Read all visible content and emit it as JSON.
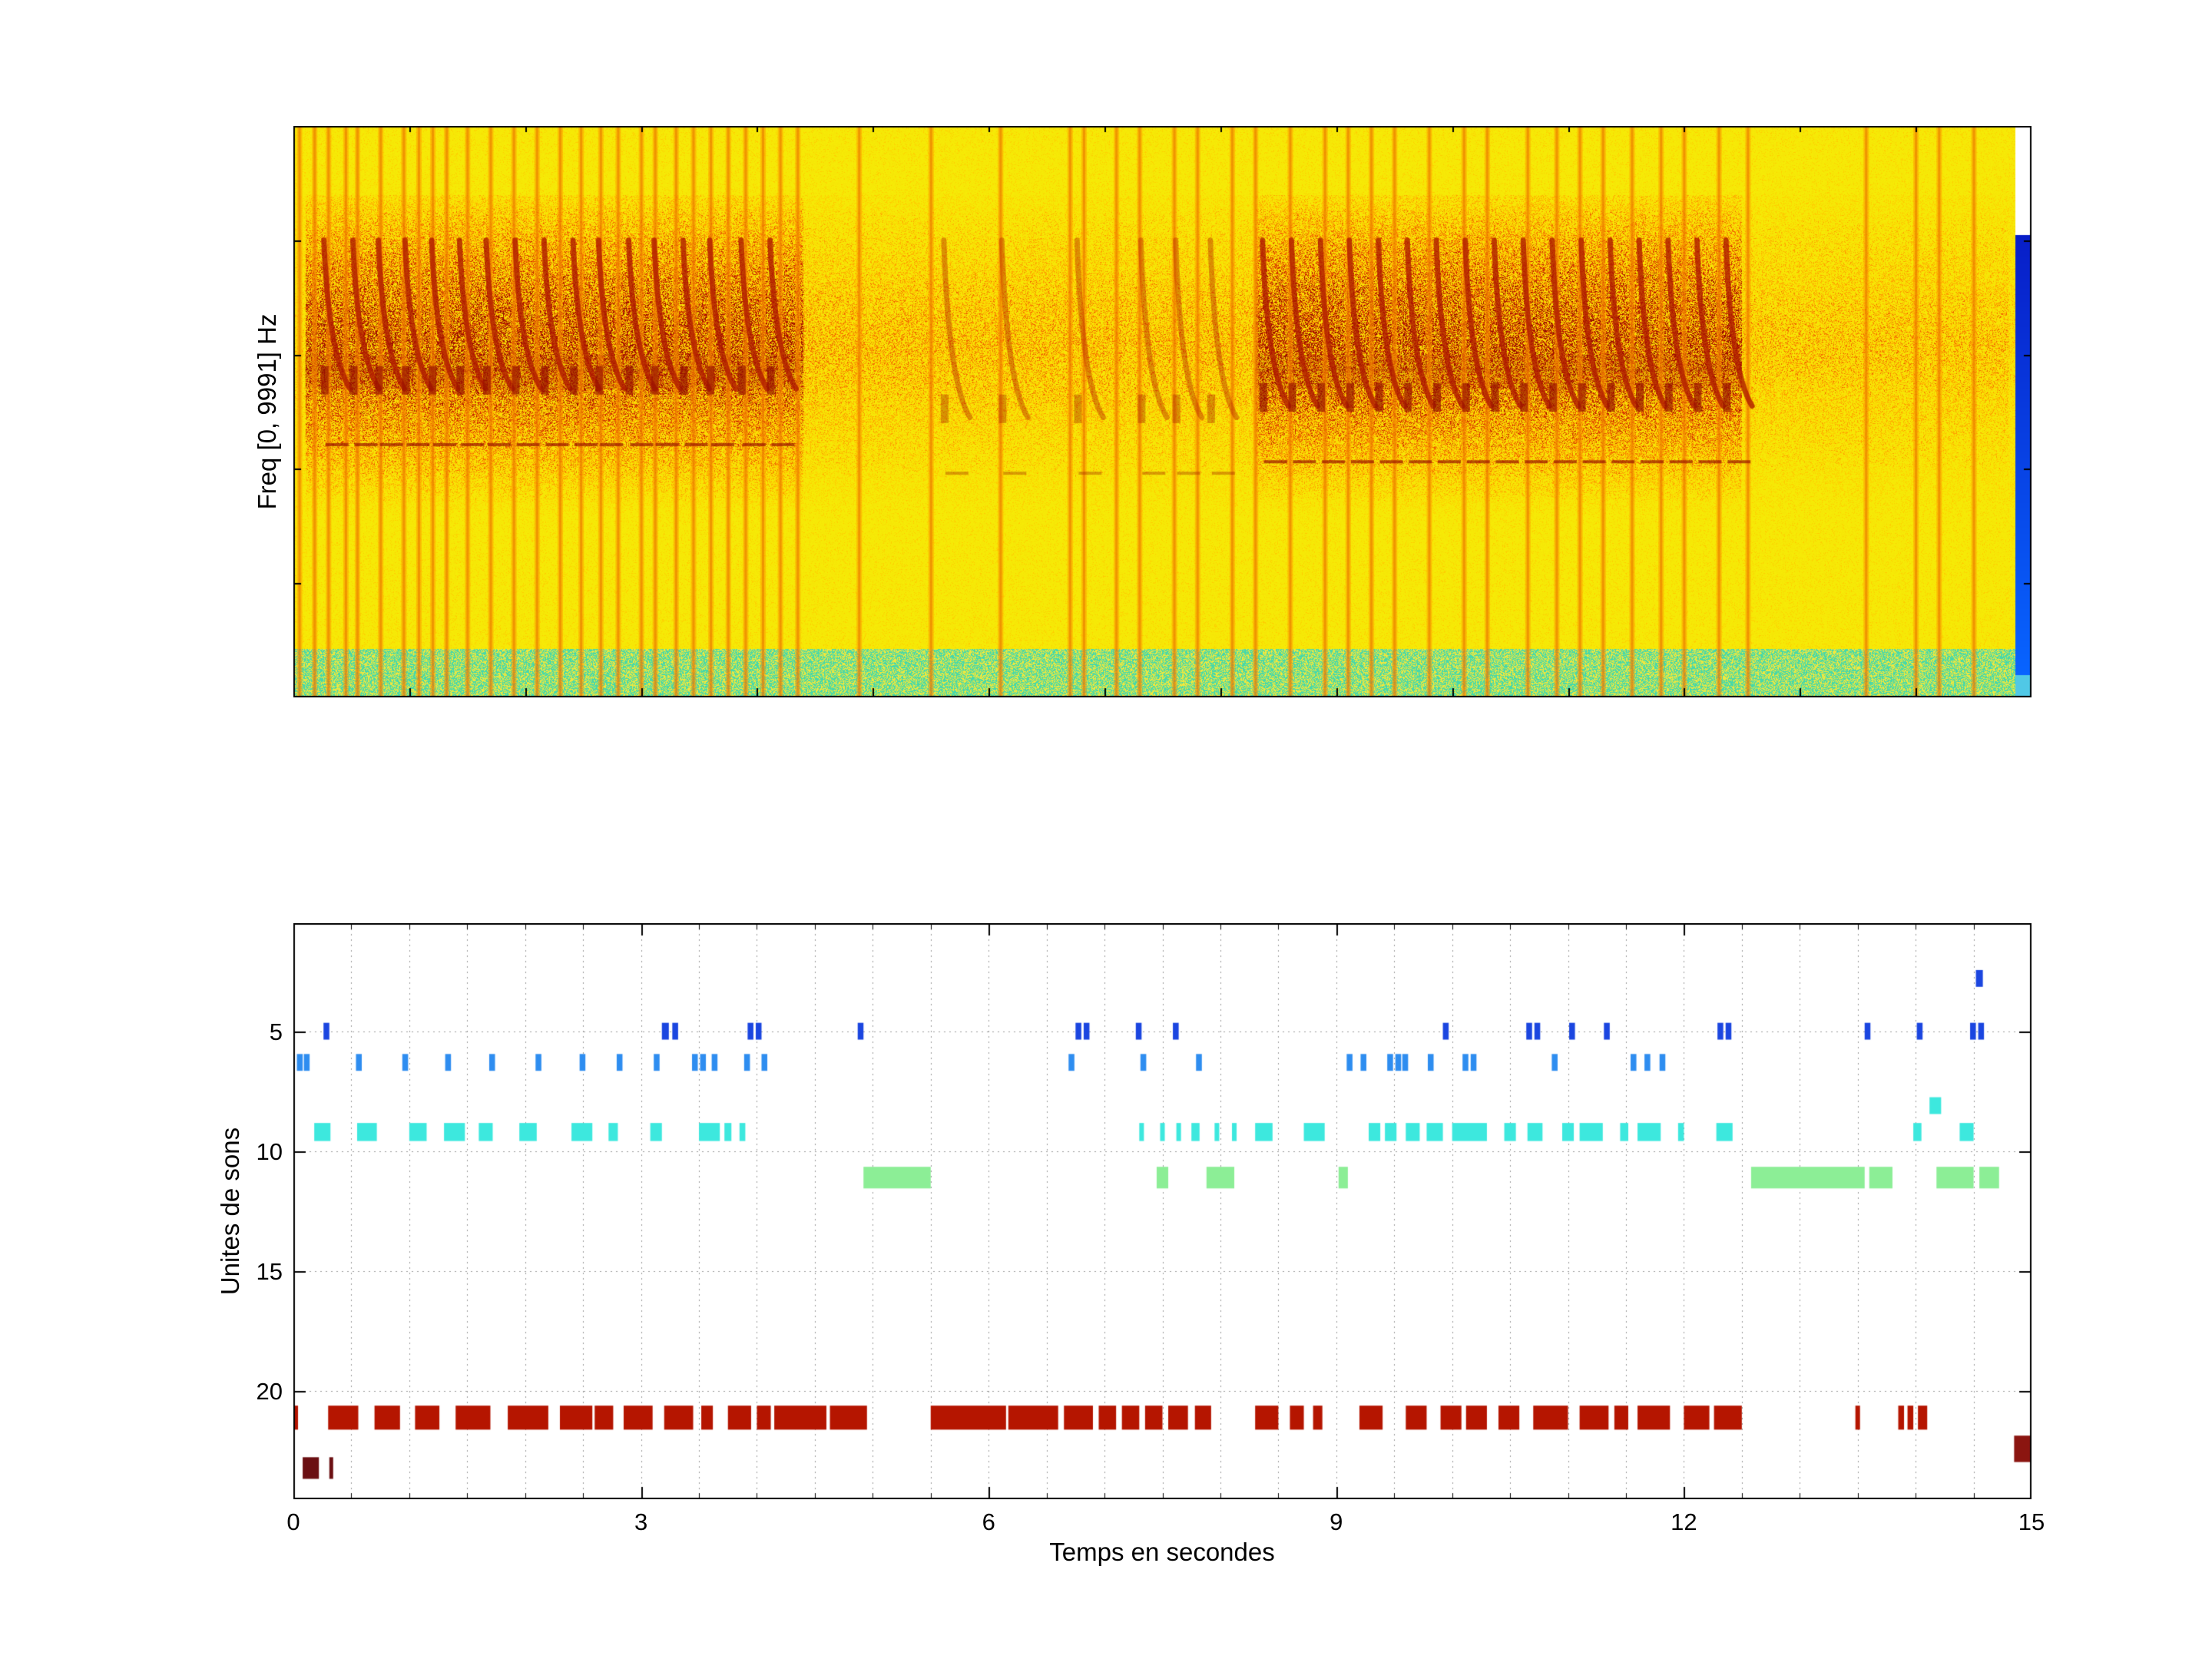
{
  "figure": {
    "background": "#ffffff"
  },
  "chart_data": [
    {
      "type": "heatmap",
      "name": "spectrogram",
      "ylabel": "Freq [0, 9991] Hz",
      "time_range_s": [
        0,
        15
      ],
      "freq_range_hz": [
        0,
        9991
      ],
      "colormap": "jet",
      "colors": {
        "background": "#f6e406",
        "speckle_warm": "#ffa000",
        "speckle_hot": "#c81400",
        "low_freq_band": "#46d8aa",
        "end_silence_blue": "#0030d8",
        "end_corner_white": "#ffffff"
      },
      "pulse_times_s": [
        0.05,
        0.18,
        0.3,
        0.45,
        0.55,
        0.75,
        0.95,
        1.08,
        1.2,
        1.32,
        1.5,
        1.7,
        1.9,
        2.1,
        2.3,
        2.48,
        2.65,
        2.8,
        3.0,
        3.12,
        3.3,
        3.45,
        3.6,
        3.75,
        3.9,
        4.05,
        4.2,
        4.35,
        4.88,
        5.5,
        6.1,
        6.7,
        6.82,
        7.1,
        7.3,
        7.6,
        7.8,
        8.1,
        8.3,
        8.6,
        8.9,
        9.1,
        9.3,
        9.5,
        9.8,
        10.1,
        10.3,
        10.65,
        10.9,
        11.1,
        11.3,
        11.55,
        11.8,
        12.0,
        12.3,
        12.55,
        13.57,
        14.0,
        14.2,
        14.5
      ],
      "chirp_times_s": [
        0.25,
        0.5,
        0.72,
        0.95,
        1.18,
        1.42,
        1.65,
        1.9,
        2.15,
        2.4,
        2.62,
        2.88,
        3.1,
        3.35,
        3.58,
        3.85,
        4.1,
        8.35,
        8.6,
        8.85,
        9.1,
        9.35,
        9.6,
        9.85,
        10.1,
        10.35,
        10.6,
        10.85,
        11.1,
        11.35,
        11.6,
        11.85,
        12.1,
        12.35
      ],
      "faint_chirp_times_s": [
        5.6,
        6.1,
        6.75,
        7.3,
        7.6,
        7.9
      ],
      "dense_band_spans_s": [
        [
          0.1,
          4.4
        ],
        [
          8.3,
          12.5
        ]
      ],
      "end_silence_start_s": 14.86
    },
    {
      "type": "scatter",
      "name": "sound-units-raster",
      "xlabel": "Temps en secondes",
      "ylabel": "Unites de sons",
      "xlim": [
        0,
        15
      ],
      "ylim": [
        0.5,
        24.5
      ],
      "y_inverted": true,
      "xticks": [
        0,
        3,
        6,
        9,
        12,
        15
      ],
      "yticks": [
        5,
        10,
        15,
        20
      ],
      "grid": "dotted",
      "grid_step_x": 0.5,
      "series": [
        {
          "name": "unit-3-blue",
          "color": "#1b46e0",
          "row": 2.8,
          "mark_height": 0.7,
          "marks": [
            [
              14.52,
              14.58
            ]
          ]
        },
        {
          "name": "unit-5-blue",
          "color": "#1b46e0",
          "row": 5.0,
          "mark_height": 0.7,
          "marks": [
            [
              0.26,
              0.31
            ],
            [
              3.18,
              3.24
            ],
            [
              3.27,
              3.32
            ],
            [
              3.92,
              3.97
            ],
            [
              3.99,
              4.04
            ],
            [
              4.87,
              4.92
            ],
            [
              6.75,
              6.8
            ],
            [
              6.82,
              6.87
            ],
            [
              7.27,
              7.32
            ],
            [
              7.59,
              7.64
            ],
            [
              9.92,
              9.97
            ],
            [
              10.64,
              10.69
            ],
            [
              10.71,
              10.76
            ],
            [
              11.01,
              11.06
            ],
            [
              11.31,
              11.36
            ],
            [
              12.29,
              12.34
            ],
            [
              12.36,
              12.41
            ],
            [
              13.56,
              13.61
            ],
            [
              14.01,
              14.06
            ],
            [
              14.47,
              14.52
            ],
            [
              14.54,
              14.59
            ]
          ]
        },
        {
          "name": "unit-6-lightblue",
          "color": "#2e8df0",
          "row": 6.3,
          "mark_height": 0.7,
          "marks": [
            [
              0.03,
              0.08
            ],
            [
              0.09,
              0.14
            ],
            [
              0.54,
              0.59
            ],
            [
              0.94,
              0.99
            ],
            [
              1.31,
              1.36
            ],
            [
              1.69,
              1.74
            ],
            [
              2.09,
              2.14
            ],
            [
              2.47,
              2.52
            ],
            [
              2.79,
              2.84
            ],
            [
              3.11,
              3.16
            ],
            [
              3.44,
              3.49
            ],
            [
              3.51,
              3.56
            ],
            [
              3.61,
              3.66
            ],
            [
              3.89,
              3.94
            ],
            [
              4.04,
              4.09
            ],
            [
              6.69,
              6.74
            ],
            [
              7.31,
              7.36
            ],
            [
              7.79,
              7.84
            ],
            [
              9.09,
              9.14
            ],
            [
              9.21,
              9.26
            ],
            [
              9.44,
              9.49
            ],
            [
              9.51,
              9.56
            ],
            [
              9.57,
              9.62
            ],
            [
              9.79,
              9.84
            ],
            [
              10.09,
              10.14
            ],
            [
              10.16,
              10.21
            ],
            [
              10.86,
              10.91
            ],
            [
              11.54,
              11.59
            ],
            [
              11.66,
              11.71
            ],
            [
              11.79,
              11.84
            ]
          ]
        },
        {
          "name": "unit-8-cyan",
          "color": "#3de8de",
          "row": 8.1,
          "mark_height": 0.7,
          "marks": [
            [
              14.12,
              14.22
            ]
          ]
        },
        {
          "name": "unit-9-cyan",
          "color": "#3de8de",
          "row": 9.2,
          "mark_height": 0.75,
          "marks": [
            [
              0.18,
              0.32
            ],
            [
              0.55,
              0.72
            ],
            [
              1.0,
              1.15
            ],
            [
              1.3,
              1.48
            ],
            [
              1.6,
              1.72
            ],
            [
              1.95,
              2.1
            ],
            [
              2.4,
              2.58
            ],
            [
              2.72,
              2.8
            ],
            [
              3.08,
              3.18
            ],
            [
              3.5,
              3.68
            ],
            [
              3.72,
              3.78
            ],
            [
              3.85,
              3.9
            ],
            [
              7.3,
              7.34
            ],
            [
              7.48,
              7.52
            ],
            [
              7.62,
              7.66
            ],
            [
              7.75,
              7.82
            ],
            [
              7.95,
              7.99
            ],
            [
              8.1,
              8.14
            ],
            [
              8.3,
              8.45
            ],
            [
              8.72,
              8.9
            ],
            [
              9.28,
              9.38
            ],
            [
              9.42,
              9.52
            ],
            [
              9.6,
              9.72
            ],
            [
              9.78,
              9.92
            ],
            [
              10.0,
              10.3
            ],
            [
              10.45,
              10.55
            ],
            [
              10.65,
              10.78
            ],
            [
              10.95,
              11.05
            ],
            [
              11.1,
              11.3
            ],
            [
              11.45,
              11.52
            ],
            [
              11.6,
              11.8
            ],
            [
              11.95,
              12.0
            ],
            [
              12.28,
              12.42
            ],
            [
              13.98,
              14.05
            ],
            [
              14.38,
              14.5
            ]
          ]
        },
        {
          "name": "unit-11-green",
          "color": "#8cee96",
          "row": 11.1,
          "mark_height": 0.9,
          "marks": [
            [
              4.92,
              5.5
            ],
            [
              7.45,
              7.55
            ],
            [
              7.88,
              8.12
            ],
            [
              9.02,
              9.1
            ],
            [
              12.58,
              13.56
            ],
            [
              13.6,
              13.8
            ],
            [
              14.18,
              14.5
            ],
            [
              14.55,
              14.72
            ]
          ]
        },
        {
          "name": "unit-21-darkred",
          "color": "#b51500",
          "row": 21.1,
          "mark_height": 1.0,
          "marks": [
            [
              0.0,
              0.04
            ],
            [
              0.3,
              0.56
            ],
            [
              0.7,
              0.92
            ],
            [
              1.05,
              1.26
            ],
            [
              1.4,
              1.7
            ],
            [
              1.85,
              2.2
            ],
            [
              2.3,
              2.58
            ],
            [
              2.6,
              2.76
            ],
            [
              2.85,
              3.1
            ],
            [
              3.2,
              3.45
            ],
            [
              3.52,
              3.62
            ],
            [
              3.75,
              3.95
            ],
            [
              4.0,
              4.12
            ],
            [
              4.15,
              4.6
            ],
            [
              4.63,
              4.95
            ],
            [
              5.5,
              6.15
            ],
            [
              6.17,
              6.6
            ],
            [
              6.65,
              6.9
            ],
            [
              6.95,
              7.1
            ],
            [
              7.15,
              7.3
            ],
            [
              7.35,
              7.5
            ],
            [
              7.55,
              7.72
            ],
            [
              7.78,
              7.92
            ],
            [
              8.3,
              8.5
            ],
            [
              8.6,
              8.72
            ],
            [
              8.8,
              8.88
            ],
            [
              9.2,
              9.4
            ],
            [
              9.6,
              9.78
            ],
            [
              9.9,
              10.08
            ],
            [
              10.12,
              10.3
            ],
            [
              10.4,
              10.58
            ],
            [
              10.7,
              11.0
            ],
            [
              11.1,
              11.35
            ],
            [
              11.4,
              11.52
            ],
            [
              11.6,
              11.88
            ],
            [
              12.0,
              12.22
            ],
            [
              12.26,
              12.5
            ],
            [
              13.48,
              13.52
            ],
            [
              13.85,
              13.9
            ],
            [
              13.93,
              13.98
            ],
            [
              14.02,
              14.1
            ]
          ]
        },
        {
          "name": "unit-22-maroon",
          "color": "#8b1510",
          "row": 22.4,
          "mark_height": 1.1,
          "marks": [
            [
              14.85,
              15.0
            ]
          ]
        },
        {
          "name": "unit-23-maroon",
          "color": "#6b0f12",
          "row": 23.2,
          "mark_height": 0.9,
          "marks": [
            [
              0.08,
              0.22
            ],
            [
              0.31,
              0.34
            ]
          ]
        }
      ]
    }
  ]
}
